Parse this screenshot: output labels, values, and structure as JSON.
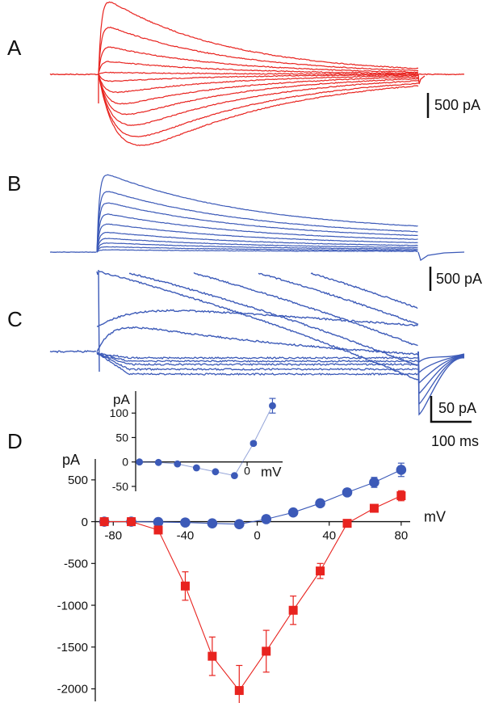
{
  "panels": {
    "a": {
      "letter": "A",
      "color": "#e8231f"
    },
    "b": {
      "letter": "B",
      "color": "#3c5ab8"
    },
    "c": {
      "letter": "C",
      "color": "#3c5ab8"
    },
    "d": {
      "letter": "D"
    }
  },
  "scale_bars": {
    "a": "500 pA",
    "b": "500 pA",
    "c_current": "50 pA",
    "c_time": "100 ms"
  },
  "chart_data": [
    {
      "type": "scatter",
      "panel": "D",
      "ylabel": "pA",
      "xlabel": "mV",
      "xlim": [
        -90,
        85
      ],
      "ylim": [
        -2150,
        750
      ],
      "x_ticks": [
        -80,
        -40,
        0,
        40,
        80
      ],
      "y_ticks": [
        500,
        0,
        -500,
        -1000,
        -1500,
        -2000
      ],
      "series": [
        {
          "color": "#3c5ab8",
          "marker": "circle",
          "x": [
            -85,
            -70,
            -55,
            -40,
            -25,
            -10,
            5,
            20,
            35,
            50,
            65,
            80
          ],
          "y": [
            0,
            0,
            -5,
            -10,
            -20,
            -30,
            30,
            110,
            220,
            350,
            470,
            620
          ],
          "err": [
            0,
            0,
            0,
            0,
            0,
            0,
            0,
            0,
            10,
            30,
            60,
            80
          ]
        },
        {
          "color": "#e8231f",
          "marker": "square",
          "x": [
            -85,
            -70,
            -55,
            -40,
            -25,
            -10,
            5,
            20,
            35,
            50,
            65,
            80
          ],
          "y": [
            0,
            0,
            -100,
            -770,
            -1610,
            -2020,
            -1550,
            -1060,
            -590,
            -20,
            160,
            310
          ],
          "err": [
            0,
            0,
            40,
            170,
            230,
            300,
            250,
            170,
            90,
            0,
            20,
            60
          ]
        }
      ]
    },
    {
      "type": "scatter",
      "panel": "D-inset",
      "ylabel": "pA",
      "xlabel": "mV",
      "xlim": [
        -88,
        28
      ],
      "ylim": [
        -60,
        145
      ],
      "y_ticks": [
        100,
        50,
        0,
        -50
      ],
      "x_ticks": [
        0
      ],
      "series": [
        {
          "color": "#3c5ab8",
          "marker": "circle",
          "x": [
            -85,
            -70,
            -55,
            -40,
            -25,
            -10,
            5,
            20
          ],
          "y": [
            0,
            -1,
            -4,
            -12,
            -20,
            -28,
            38,
            115
          ],
          "err": [
            0,
            0,
            0,
            0,
            0,
            0,
            3,
            15
          ]
        }
      ]
    }
  ]
}
